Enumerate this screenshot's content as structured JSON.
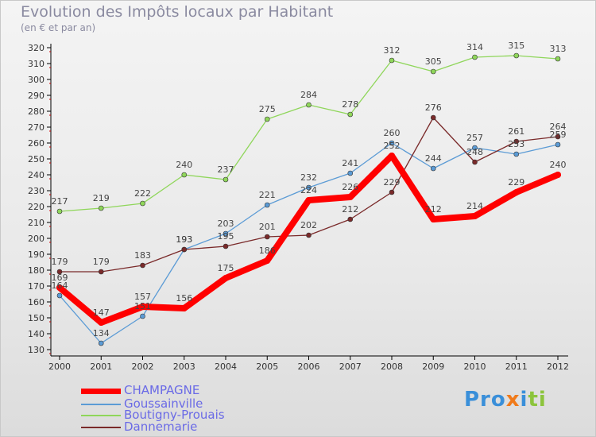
{
  "title": "Evolution des Impôts locaux par Habitant",
  "subtitle": "(en € et par an)",
  "logo": "Proxiti",
  "chart_data": {
    "type": "line",
    "title": "Evolution des Impôts locaux par Habitant",
    "subtitle": "(en € et par an)",
    "x": [
      "2000",
      "2001",
      "2002",
      "2003",
      "2004",
      "2005",
      "2006",
      "2007",
      "2008",
      "2009",
      "2010",
      "2011",
      "2012"
    ],
    "ylim": [
      130,
      320
    ],
    "yticks": [
      130,
      140,
      150,
      160,
      170,
      180,
      190,
      200,
      210,
      220,
      230,
      240,
      250,
      260,
      270,
      280,
      290,
      300,
      310,
      320
    ],
    "grid": false,
    "legend_position": "bottom-left",
    "series": [
      {
        "name": "CHAMPAGNE",
        "color": "#ff0000",
        "values": [
          169,
          147,
          157,
          156,
          175,
          186,
          224,
          226,
          252,
          212,
          214,
          229,
          240
        ]
      },
      {
        "name": "Goussainville",
        "color": "#5b9bd5",
        "values": [
          164,
          134,
          151,
          193,
          203,
          221,
          232,
          241,
          260,
          244,
          257,
          253,
          259
        ]
      },
      {
        "name": "Boutigny-Prouais",
        "color": "#8fd65a",
        "values": [
          217,
          219,
          222,
          240,
          237,
          275,
          284,
          278,
          312,
          305,
          314,
          315,
          313
        ]
      },
      {
        "name": "Dannemarie",
        "color": "#7a2a2a",
        "values": [
          179,
          179,
          183,
          193,
          195,
          201,
          202,
          212,
          229,
          276,
          248,
          261,
          264
        ]
      }
    ]
  }
}
